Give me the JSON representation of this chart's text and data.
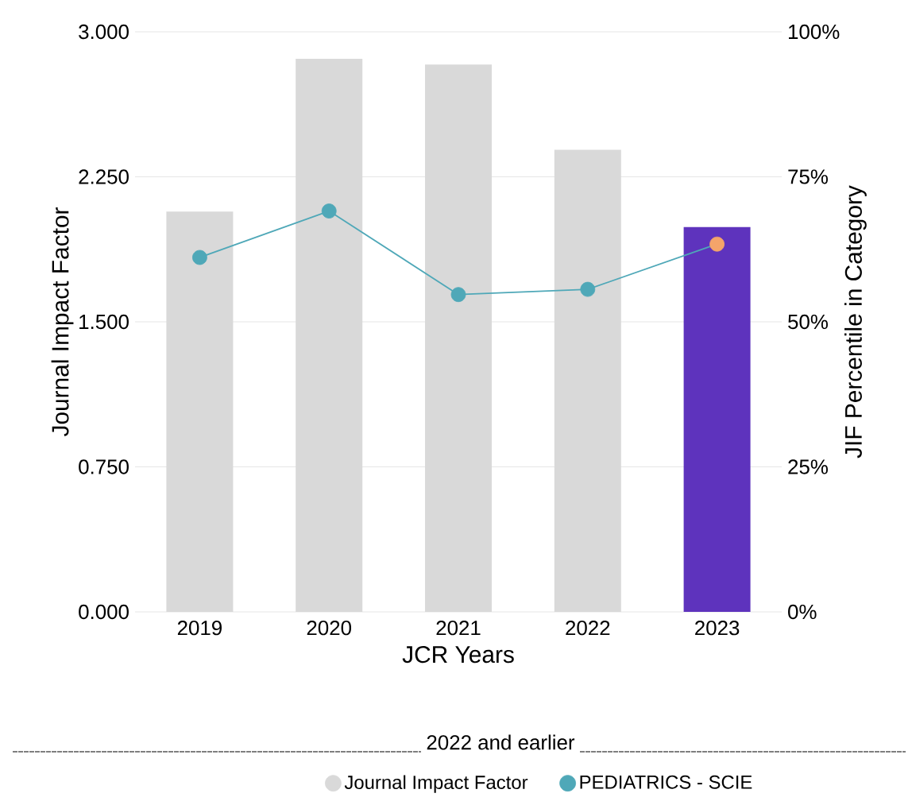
{
  "chart_data": {
    "type": "bar",
    "categories": [
      "2019",
      "2020",
      "2021",
      "2022",
      "2023"
    ],
    "series": [
      {
        "name": "Journal Impact Factor",
        "color": "#d9d9d9",
        "colors": [
          "#d9d9d9",
          "#d9d9d9",
          "#d9d9d9",
          "#d9d9d9",
          "#5e33bd"
        ],
        "values": [
          2.07,
          2.86,
          2.83,
          2.39,
          1.99
        ]
      },
      {
        "name": "PEDIATRICS - SCIE",
        "type": "line",
        "axis": "y2",
        "marker": "circle",
        "color": "#4fa8b8",
        "colors": [
          "#4fa8b8",
          "#4fa8b8",
          "#4fa8b8",
          "#4fa8b8",
          "#f4a46a"
        ],
        "values": [
          61.1,
          69.1,
          54.7,
          55.6,
          63.4
        ]
      }
    ],
    "xlabel": "JCR Years",
    "ylabel": "Journal Impact Factor",
    "y2label": "JIF Percentile in Category",
    "ylim": [
      0,
      3
    ],
    "yticks": [
      {
        "value": 0,
        "label": "0.000"
      },
      {
        "value": 0.75,
        "label": "0.750"
      },
      {
        "value": 1.5,
        "label": "1.500"
      },
      {
        "value": 2.25,
        "label": "2.250"
      },
      {
        "value": 3,
        "label": "3.000"
      }
    ],
    "y2lim": [
      0,
      100
    ],
    "y2ticks": [
      {
        "value": 0,
        "label": "0%"
      },
      {
        "value": 25,
        "label": "25%"
      },
      {
        "value": 50,
        "label": "50%"
      },
      {
        "value": 75,
        "label": "75%"
      },
      {
        "value": 100,
        "label": "100%"
      }
    ],
    "grid": "y",
    "legend": "bottom",
    "annotations": [
      "2022 and earlier"
    ]
  }
}
